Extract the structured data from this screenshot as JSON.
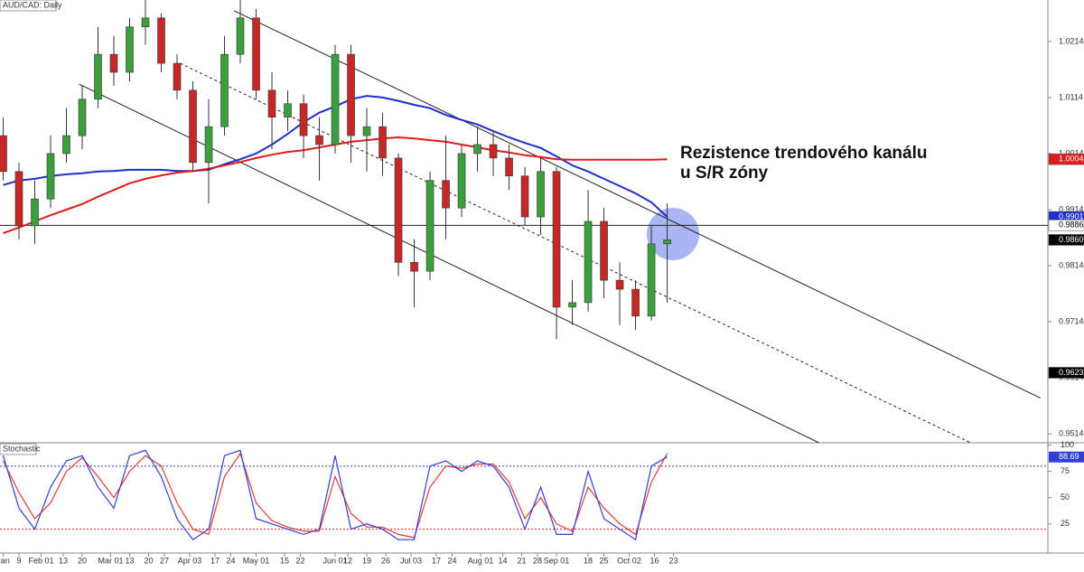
{
  "chart_data": [
    {
      "type": "candlestick",
      "title": "AUD/CAD: Daily",
      "x": [
        1,
        6,
        11,
        16,
        21,
        26,
        31,
        36,
        41,
        46,
        51,
        56,
        61,
        66,
        71,
        76,
        81,
        86,
        91,
        96,
        101,
        106,
        111,
        116,
        121,
        126,
        131,
        136,
        141,
        146,
        151,
        156,
        161,
        166,
        171,
        176,
        181,
        186,
        191,
        196,
        201,
        206,
        211
      ],
      "open": [
        1.0046,
        0.9982,
        0.9885,
        0.9933,
        1.0014,
        1.0046,
        1.0111,
        1.0191,
        1.0159,
        1.024,
        1.0256,
        1.0175,
        1.0127,
        0.9998,
        1.0062,
        1.0191,
        1.0256,
        1.0127,
        1.0079,
        1.0103,
        1.0046,
        1.003,
        1.0191,
        1.0046,
        1.0062,
        1.0006,
        0.982,
        0.9804,
        0.9966,
        0.9917,
        1.0014,
        1.003,
        1.0006,
        0.9974,
        0.9901,
        0.9982,
        0.974,
        0.9748,
        0.9893,
        0.9788,
        0.9772,
        0.9724,
        0.9853
      ],
      "high": [
        1.0078,
        0.9998,
        0.9966,
        1.0046,
        1.0095,
        1.0135,
        1.024,
        1.0224,
        1.0256,
        1.0288,
        1.0264,
        1.0191,
        1.0143,
        1.0111,
        1.0224,
        1.0288,
        1.0272,
        1.0159,
        1.0127,
        1.0119,
        1.0079,
        1.0208,
        1.0208,
        1.0095,
        1.0087,
        1.0014,
        0.9861,
        0.9982,
        1.0046,
        1.003,
        1.0062,
        1.0054,
        1.003,
        0.999,
        1.0006,
        0.999,
        0.9788,
        0.9949,
        0.9917,
        0.982,
        0.9788,
        0.9885,
        0.9925
      ],
      "low": [
        0.9966,
        0.9861,
        0.9853,
        0.9917,
        0.9998,
        1.0022,
        1.0095,
        1.0135,
        1.0143,
        1.0208,
        1.0159,
        1.0111,
        0.9982,
        0.9925,
        1.0046,
        1.0175,
        1.0111,
        1.0022,
        1.0054,
        1.0006,
        0.9966,
        1.0014,
        0.9998,
        0.9982,
        0.9974,
        0.9796,
        0.974,
        0.9788,
        0.9861,
        0.9901,
        0.9982,
        0.9974,
        0.9949,
        0.9885,
        0.9869,
        0.9683,
        0.9708,
        0.9732,
        0.9756,
        0.9708,
        0.9699,
        0.9716,
        0.9748
      ],
      "close": [
        0.9982,
        0.9885,
        0.9933,
        1.0014,
        1.0046,
        1.0111,
        1.0191,
        1.0159,
        1.024,
        1.0256,
        1.0175,
        1.0127,
        0.9998,
        1.0062,
        1.0191,
        1.0256,
        1.0127,
        1.0079,
        1.0103,
        1.0046,
        1.003,
        1.0191,
        1.0046,
        1.0062,
        1.0006,
        0.982,
        0.9804,
        0.9966,
        0.9917,
        1.0014,
        1.003,
        1.0006,
        0.9974,
        0.9901,
        0.9982,
        0.974,
        0.9748,
        0.9893,
        0.9788,
        0.9772,
        0.9724,
        0.9853,
        0.986
      ],
      "up_color": "#3d9e3d",
      "down_color": "#c62828",
      "overlays": [
        {
          "color": "#1e2fd0",
          "values": [
            0.9958,
            0.9966,
            0.9969,
            0.9974,
            0.9977,
            0.9979,
            0.9982,
            0.9983,
            0.9985,
            0.9985,
            0.9985,
            0.9983,
            0.9983,
            0.9985,
            0.9995,
            1.0004,
            1.0014,
            1.003,
            1.0049,
            1.007,
            1.0087,
            1.0098,
            1.0111,
            1.0117,
            1.0114,
            1.0108,
            1.0101,
            1.0095,
            1.0083,
            1.0074,
            1.0066,
            1.0054,
            1.0043,
            1.0033,
            1.0024,
            1.0009,
            0.9993,
            0.9982,
            0.9969,
            0.9956,
            0.9943,
            0.9927,
            0.9901
          ]
        },
        {
          "color": "#e01b1b",
          "values": [
            0.9872,
            0.9882,
            0.9893,
            0.9904,
            0.9914,
            0.9924,
            0.9937,
            0.9949,
            0.9961,
            0.9969,
            0.9975,
            0.998,
            0.9983,
            0.9987,
            0.9993,
            0.9999,
            1.0006,
            1.0012,
            1.0017,
            1.002,
            1.0025,
            1.003,
            1.0035,
            1.0038,
            1.0041,
            1.0043,
            1.0041,
            1.0038,
            1.0035,
            1.003,
            1.0025,
            1.002,
            1.0016,
            1.0011,
            1.0008,
            1.0004,
            1.0003,
            1.0003,
            1.0003,
            1.0003,
            1.0003,
            1.0003,
            1.0004
          ]
        }
      ],
      "trendlines": [
        {
          "x": [
            74,
            329
          ],
          "y": [
            1.0269,
            0.9578
          ],
          "dashed": false
        },
        {
          "x": [
            57,
            307
          ],
          "y": [
            1.0175,
            0.9498
          ],
          "dashed": true
        },
        {
          "x": [
            25,
            259
          ],
          "y": [
            1.0138,
            0.9498
          ],
          "dashed": false
        }
      ],
      "hline": 0.9886,
      "price_tags": [
        {
          "value": 1.0004,
          "color": "#e01b1b",
          "text": "#fff"
        },
        {
          "value": 0.9901,
          "color": "#1e2fd0",
          "text": "#fff"
        },
        {
          "value": 0.9886,
          "color": "#fff",
          "text": "#000"
        },
        {
          "value": 0.986,
          "label": "0.9860",
          "color": "#000",
          "text": "#fff"
        },
        {
          "value": 0.9623,
          "color": "#000",
          "text": "#fff"
        }
      ],
      "xlim": [
        0,
        331.4
      ],
      "ylim": [
        0.9498,
        1.0288
      ],
      "yticks": [
        1.0214,
        1.0114,
        1.0014,
        0.9914,
        0.9814,
        0.9714,
        0.9614,
        0.9514
      ],
      "annotation": [
        "Rezistence trendového kanálu",
        "u S/R zóny"
      ]
    },
    {
      "type": "line",
      "title": "Stochastic",
      "x": [
        1,
        6,
        11,
        16,
        21,
        26,
        31,
        36,
        41,
        46,
        51,
        56,
        61,
        66,
        71,
        76,
        81,
        86,
        91,
        96,
        101,
        106,
        111,
        116,
        121,
        126,
        131,
        136,
        141,
        146,
        151,
        156,
        161,
        166,
        171,
        176,
        181,
        186,
        191,
        196,
        201,
        206,
        211
      ],
      "series": [
        {
          "color": "#2f3fd6",
          "values": [
            90,
            40,
            20,
            60,
            85,
            90,
            60,
            40,
            90,
            95,
            70,
            30,
            10,
            20,
            90,
            95,
            30,
            25,
            20,
            15,
            20,
            90,
            20,
            25,
            20,
            10,
            10,
            80,
            85,
            75,
            85,
            80,
            60,
            20,
            60,
            15,
            15,
            75,
            30,
            20,
            10,
            80,
            88.69
          ]
        },
        {
          "color": "#e53935",
          "values": [
            85,
            55,
            30,
            45,
            75,
            88,
            70,
            50,
            75,
            90,
            80,
            45,
            20,
            15,
            70,
            92,
            45,
            28,
            22,
            18,
            18,
            70,
            35,
            22,
            22,
            15,
            12,
            60,
            80,
            78,
            82,
            82,
            65,
            30,
            50,
            25,
            18,
            60,
            40,
            25,
            15,
            65,
            92
          ]
        }
      ],
      "bands": [
        {
          "value": 80,
          "color": "#3040c0"
        },
        {
          "value": 20,
          "color": "#e02020"
        }
      ],
      "ylim": [
        -1,
        100.5
      ],
      "yticks": [
        25,
        50,
        75,
        100
      ],
      "xlim": [
        0,
        331.4
      ],
      "xticks": [
        {
          "value": 1,
          "label": "Jan"
        },
        {
          "value": 6,
          "label": "9"
        },
        {
          "value": 13,
          "label": "Feb 01"
        },
        {
          "value": 20,
          "label": "13"
        },
        {
          "value": 26,
          "label": "20"
        },
        {
          "value": 35,
          "label": "Mar 01"
        },
        {
          "value": 41,
          "label": "13"
        },
        {
          "value": 47,
          "label": "20"
        },
        {
          "value": 52,
          "label": "27"
        },
        {
          "value": 60,
          "label": "Apr 03"
        },
        {
          "value": 68,
          "label": "17"
        },
        {
          "value": 73,
          "label": "24"
        },
        {
          "value": 81,
          "label": "May 01"
        },
        {
          "value": 90,
          "label": "15"
        },
        {
          "value": 95,
          "label": "22"
        },
        {
          "value": 106,
          "label": "Jun 01"
        },
        {
          "value": 110,
          "label": "12"
        },
        {
          "value": 116,
          "label": "19"
        },
        {
          "value": 122,
          "label": "26"
        },
        {
          "value": 130,
          "label": "Jul 03"
        },
        {
          "value": 138,
          "label": "17"
        },
        {
          "value": 143,
          "label": "24"
        },
        {
          "value": 152,
          "label": "Aug 01"
        },
        {
          "value": 159,
          "label": "14"
        },
        {
          "value": 165,
          "label": "21"
        },
        {
          "value": 170,
          "label": "28"
        },
        {
          "value": 176,
          "label": "Sep 01"
        },
        {
          "value": 186,
          "label": "18"
        },
        {
          "value": 191,
          "label": "25"
        },
        {
          "value": 199,
          "label": "Oct 02"
        },
        {
          "value": 207,
          "label": "16"
        },
        {
          "value": 213,
          "label": "23"
        }
      ]
    }
  ]
}
